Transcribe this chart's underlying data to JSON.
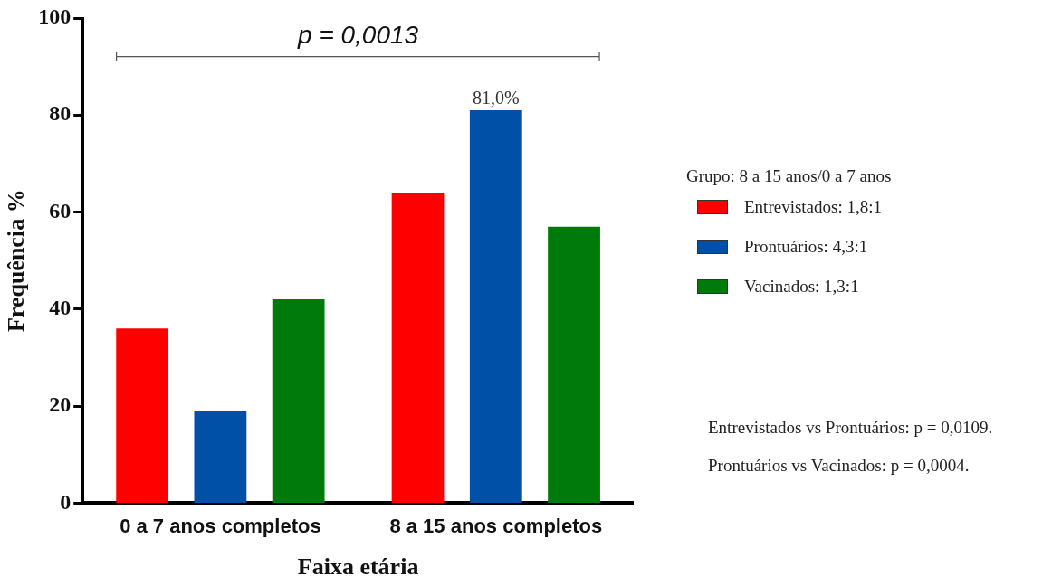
{
  "chart_data": {
    "type": "bar",
    "xlabel": "Faixa etária",
    "ylabel": "Frequência %",
    "legend_title": "Grupo: 8 a 15 anos/0 a 7 anos",
    "legend": "right",
    "categories": [
      "0 a 7 anos completos",
      "8 a 15 anos completos"
    ],
    "series": [
      {
        "name": "Entrevistados: 1,8:1",
        "color": "#ff0000",
        "values": [
          36,
          64
        ]
      },
      {
        "name": "Prontuários: 4,3:1",
        "color": "#0050a8",
        "values": [
          19,
          81
        ],
        "value_labels": [
          null,
          "81,0%"
        ]
      },
      {
        "name": "Vacinados: 1,3:1",
        "color": "#007a0a",
        "values": [
          42,
          57
        ]
      }
    ],
    "ylim": [
      0,
      100
    ],
    "yticks": [
      0,
      20,
      40,
      60,
      80,
      100
    ],
    "grid": false,
    "annotations": [
      "p = 0,0013",
      "Entrevistados vs Prontuários: p = 0,0109.",
      "Prontuários vs Vacinados: p = 0,0004."
    ]
  }
}
